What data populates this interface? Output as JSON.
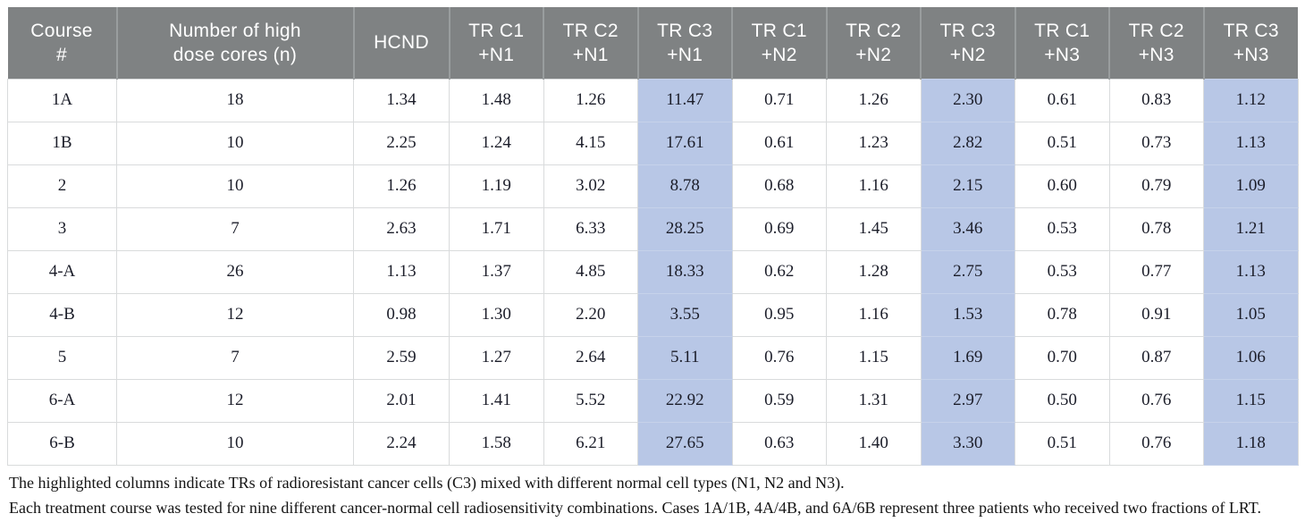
{
  "colors": {
    "header_bg": "#7f8283",
    "header_text": "#ffffff",
    "highlight_bg": "#b8c7e6",
    "grid_line": "#d9dbdc",
    "body_text": "#1b1d29"
  },
  "table": {
    "columns": [
      {
        "label": "Course\n#",
        "highlight": false
      },
      {
        "label": "Number of high\ndose cores (n)",
        "highlight": false
      },
      {
        "label": "HCND",
        "highlight": false
      },
      {
        "label": "TR C1\n+N1",
        "highlight": false
      },
      {
        "label": "TR C2\n+N1",
        "highlight": false
      },
      {
        "label": "TR C3\n+N1",
        "highlight": true
      },
      {
        "label": "TR C1\n+N2",
        "highlight": false
      },
      {
        "label": "TR C2\n+N2",
        "highlight": false
      },
      {
        "label": "TR C3\n+N2",
        "highlight": true
      },
      {
        "label": "TR C1\n+N3",
        "highlight": false
      },
      {
        "label": "TR C2\n+N3",
        "highlight": false
      },
      {
        "label": "TR C3\n+N3",
        "highlight": true
      }
    ],
    "rows": [
      [
        "1A",
        "18",
        "1.34",
        "1.48",
        "1.26",
        "11.47",
        "0.71",
        "1.26",
        "2.30",
        "0.61",
        "0.83",
        "1.12"
      ],
      [
        "1B",
        "10",
        "2.25",
        "1.24",
        "4.15",
        "17.61",
        "0.61",
        "1.23",
        "2.82",
        "0.51",
        "0.73",
        "1.13"
      ],
      [
        "2",
        "10",
        "1.26",
        "1.19",
        "3.02",
        "8.78",
        "0.68",
        "1.16",
        "2.15",
        "0.60",
        "0.79",
        "1.09"
      ],
      [
        "3",
        "7",
        "2.63",
        "1.71",
        "6.33",
        "28.25",
        "0.69",
        "1.45",
        "3.46",
        "0.53",
        "0.78",
        "1.21"
      ],
      [
        "4-A",
        "26",
        "1.13",
        "1.37",
        "4.85",
        "18.33",
        "0.62",
        "1.28",
        "2.75",
        "0.53",
        "0.77",
        "1.13"
      ],
      [
        "4-B",
        "12",
        "0.98",
        "1.30",
        "2.20",
        "3.55",
        "0.95",
        "1.16",
        "1.53",
        "0.78",
        "0.91",
        "1.05"
      ],
      [
        "5",
        "7",
        "2.59",
        "1.27",
        "2.64",
        "5.11",
        "0.76",
        "1.15",
        "1.69",
        "0.70",
        "0.87",
        "1.06"
      ],
      [
        "6-A",
        "12",
        "2.01",
        "1.41",
        "5.52",
        "22.92",
        "0.59",
        "1.31",
        "2.97",
        "0.50",
        "0.76",
        "1.15"
      ],
      [
        "6-B",
        "10",
        "2.24",
        "1.58",
        "6.21",
        "27.65",
        "0.63",
        "1.40",
        "3.30",
        "0.51",
        "0.76",
        "1.18"
      ]
    ]
  },
  "footnotes": [
    "The highlighted columns indicate TRs of radioresistant cancer cells (C3) mixed with different normal cell types (N1, N2 and N3).",
    "Each treatment course was tested for nine different cancer-normal cell radiosensitivity combinations. Cases 1A/1B, 4A/4B, and 6A/6B represent three patients who received two fractions of LRT."
  ]
}
